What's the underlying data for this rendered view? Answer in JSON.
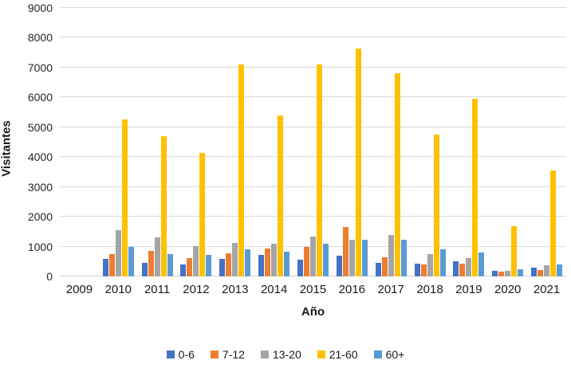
{
  "chart_data": {
    "type": "bar",
    "title": "",
    "xlabel": "Año",
    "ylabel": "Visitantes",
    "ylim": [
      0,
      9000
    ],
    "y_tick_step": 1000,
    "y_ticks": [
      0,
      1000,
      2000,
      3000,
      4000,
      5000,
      6000,
      7000,
      8000,
      9000
    ],
    "grid": true,
    "legend_position": "bottom",
    "categories": [
      "2009",
      "2010",
      "2011",
      "2012",
      "2013",
      "2014",
      "2015",
      "2016",
      "2017",
      "2018",
      "2019",
      "2020",
      "2021"
    ],
    "series": [
      {
        "name": "0-6",
        "color": "#4472C4",
        "values": [
          0,
          600,
          450,
          400,
          590,
          710,
          550,
          700,
          460,
          430,
          500,
          190,
          300
        ]
      },
      {
        "name": "7-12",
        "color": "#ED7D31",
        "values": [
          0,
          750,
          850,
          620,
          780,
          930,
          1000,
          1650,
          630,
          400,
          430,
          170,
          210
        ]
      },
      {
        "name": "13-20",
        "color": "#A5A5A5",
        "values": [
          0,
          1550,
          1300,
          1020,
          1120,
          1100,
          1330,
          1240,
          1400,
          740,
          610,
          190,
          385
        ]
      },
      {
        "name": "21-60",
        "color": "#FFC000",
        "values": [
          0,
          5250,
          4700,
          4150,
          7100,
          5400,
          7100,
          7650,
          6800,
          4750,
          5950,
          1680,
          3560
        ]
      },
      {
        "name": "60+",
        "color": "#5B9BD5",
        "values": [
          0,
          1000,
          750,
          730,
          900,
          830,
          1090,
          1230,
          1240,
          910,
          790,
          250,
          410
        ]
      }
    ],
    "colors": {
      "gridline": "#d9d9d9",
      "text": "#262626"
    }
  }
}
